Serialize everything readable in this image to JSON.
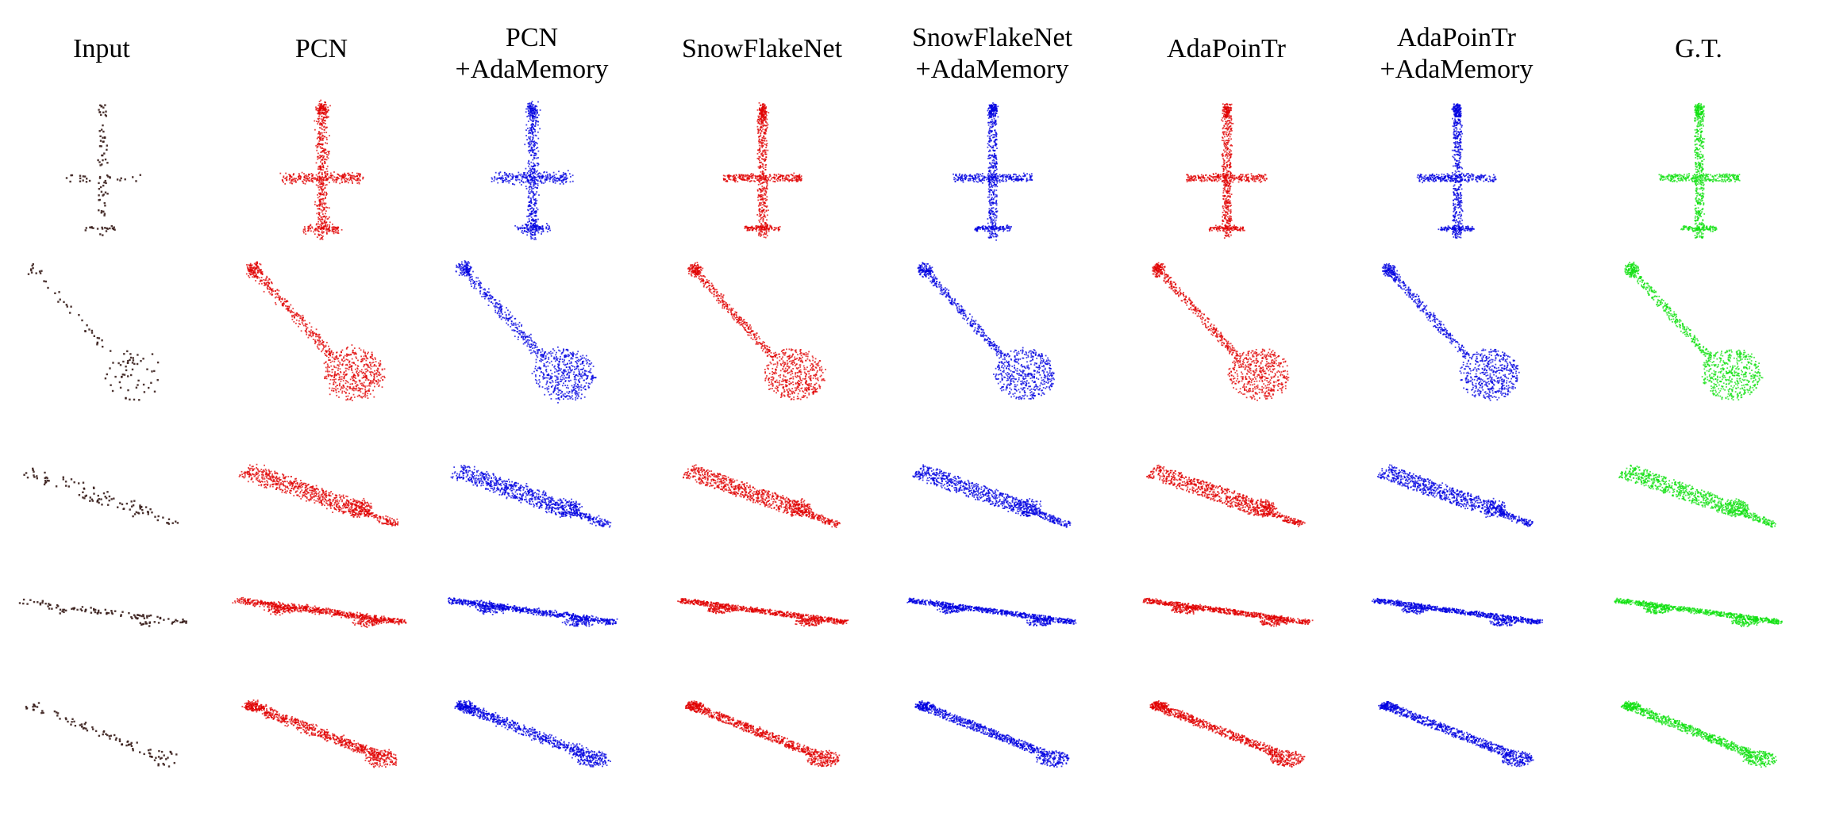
{
  "columns": [
    {
      "id": "input",
      "lines": [
        "Input"
      ],
      "color": "#3a1f1c"
    },
    {
      "id": "pcn",
      "lines": [
        "PCN"
      ],
      "color": "#e00000"
    },
    {
      "id": "pcn-ada",
      "lines": [
        "PCN",
        "+AdaMemory"
      ],
      "color": "#0000e0"
    },
    {
      "id": "snowflake",
      "lines": [
        "SnowFlakeNet"
      ],
      "color": "#e00000"
    },
    {
      "id": "snowflake-ada",
      "lines": [
        "SnowFlakeNet",
        "+AdaMemory"
      ],
      "color": "#0000e0"
    },
    {
      "id": "adapointr",
      "lines": [
        "AdaPoinTr"
      ],
      "color": "#e00000"
    },
    {
      "id": "adapointr-ada",
      "lines": [
        "AdaPoinTr",
        "+AdaMemory"
      ],
      "color": "#0000e0"
    },
    {
      "id": "gt",
      "lines": [
        "G.T."
      ],
      "color": "#10e010"
    }
  ],
  "rows": [
    "airplane",
    "guitar",
    "knife",
    "skateboard",
    "rifle"
  ]
}
